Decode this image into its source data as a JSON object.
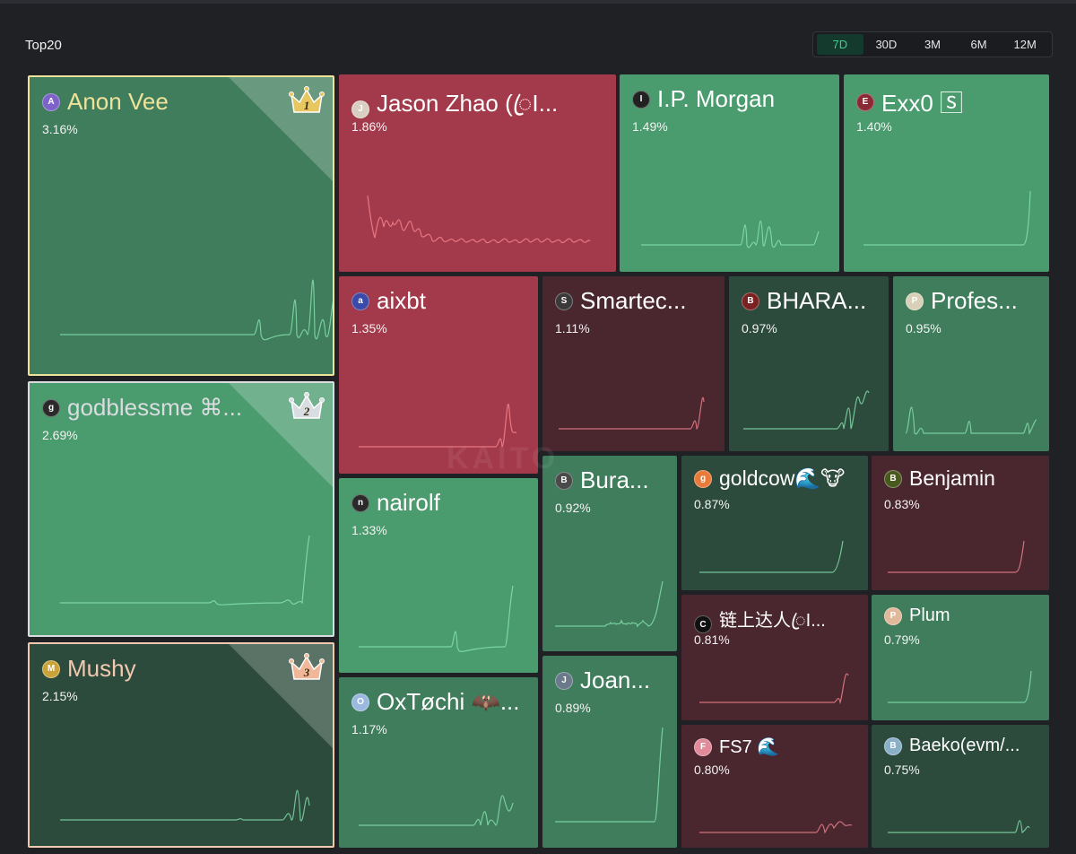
{
  "header": {
    "title": "Top20"
  },
  "timeframes": {
    "options": [
      "7D",
      "30D",
      "3M",
      "6M",
      "12M"
    ],
    "active": "7D"
  },
  "watermark": "KAITO",
  "colors": {
    "green_bright": "#4a9b6e",
    "green_mid": "#3f7d5c",
    "green_dark": "#2d4b3d",
    "red_bright": "#a33a4b",
    "red_dark": "#4a262f",
    "rank1_border": "#efe29a",
    "rank2_border": "#d9dde0",
    "rank3_border": "#f0c9b0"
  },
  "tiles": [
    {
      "name": "Anon Vee",
      "pct": "3.16%",
      "rank": "1",
      "rank_icon": "crown-gold-icon",
      "avatar": "A",
      "avatar_color": "#7d63c9"
    },
    {
      "name": "godblessme ⌘...",
      "pct": "2.69%",
      "rank": "2",
      "rank_icon": "crown-silver-icon",
      "avatar": "g",
      "avatar_color": "#2a2a2a"
    },
    {
      "name": "Mushy",
      "pct": "2.15%",
      "rank": "3",
      "rank_icon": "crown-bronze-icon",
      "avatar": "M",
      "avatar_color": "#c9a33a"
    },
    {
      "name": "Jason Zhao (ꦿI...",
      "pct": "1.86%",
      "avatar": "J",
      "avatar_color": "#d8cfc2"
    },
    {
      "name": "I.P. Morgan",
      "pct": "1.49%",
      "avatar": "I",
      "avatar_color": "#222222"
    },
    {
      "name": "Exx0 🅂",
      "pct": "1.40%",
      "avatar": "E",
      "avatar_color": "#8a2a35"
    },
    {
      "name": "aixbt",
      "pct": "1.35%",
      "avatar": "a",
      "avatar_color": "#3b4aa8"
    },
    {
      "name": "Smartec...",
      "pct": "1.11%",
      "avatar": "S",
      "avatar_color": "#3a3a3a"
    },
    {
      "name": "BHARA...",
      "pct": "0.97%",
      "avatar": "B",
      "avatar_color": "#7a2222"
    },
    {
      "name": "Profes...",
      "pct": "0.95%",
      "avatar": "P",
      "avatar_color": "#d9d0b8"
    },
    {
      "name": "nairolf",
      "pct": "1.33%",
      "avatar": "n",
      "avatar_color": "#2a2a2a"
    },
    {
      "name": "Bura...",
      "pct": "0.92%",
      "avatar": "B",
      "avatar_color": "#4a4a4a"
    },
    {
      "name": "goldcow🌊🐮",
      "pct": "0.87%",
      "avatar": "g",
      "avatar_color": "#e87a3a"
    },
    {
      "name": "Benjamin",
      "pct": "0.83%",
      "avatar": "B",
      "avatar_color": "#4a5a1e"
    },
    {
      "name": "OxTøchi 🦇...",
      "pct": "1.17%",
      "avatar": "O",
      "avatar_color": "#9ab8e0"
    },
    {
      "name": "Joan...",
      "pct": "0.89%",
      "avatar": "J",
      "avatar_color": "#6a7a8a"
    },
    {
      "name": "链上达人ꦿI...",
      "pct": "0.81%",
      "avatar": "C",
      "avatar_color": "#111111"
    },
    {
      "name": "Plum",
      "pct": "0.79%",
      "avatar": "P",
      "avatar_color": "#e0b89a"
    },
    {
      "name": "FS7 🌊",
      "pct": "0.80%",
      "avatar": "F",
      "avatar_color": "#e08a9a"
    },
    {
      "name": "Baeko(evm/...",
      "pct": "0.75%",
      "avatar": "B",
      "avatar_color": "#8ab0c8"
    }
  ]
}
